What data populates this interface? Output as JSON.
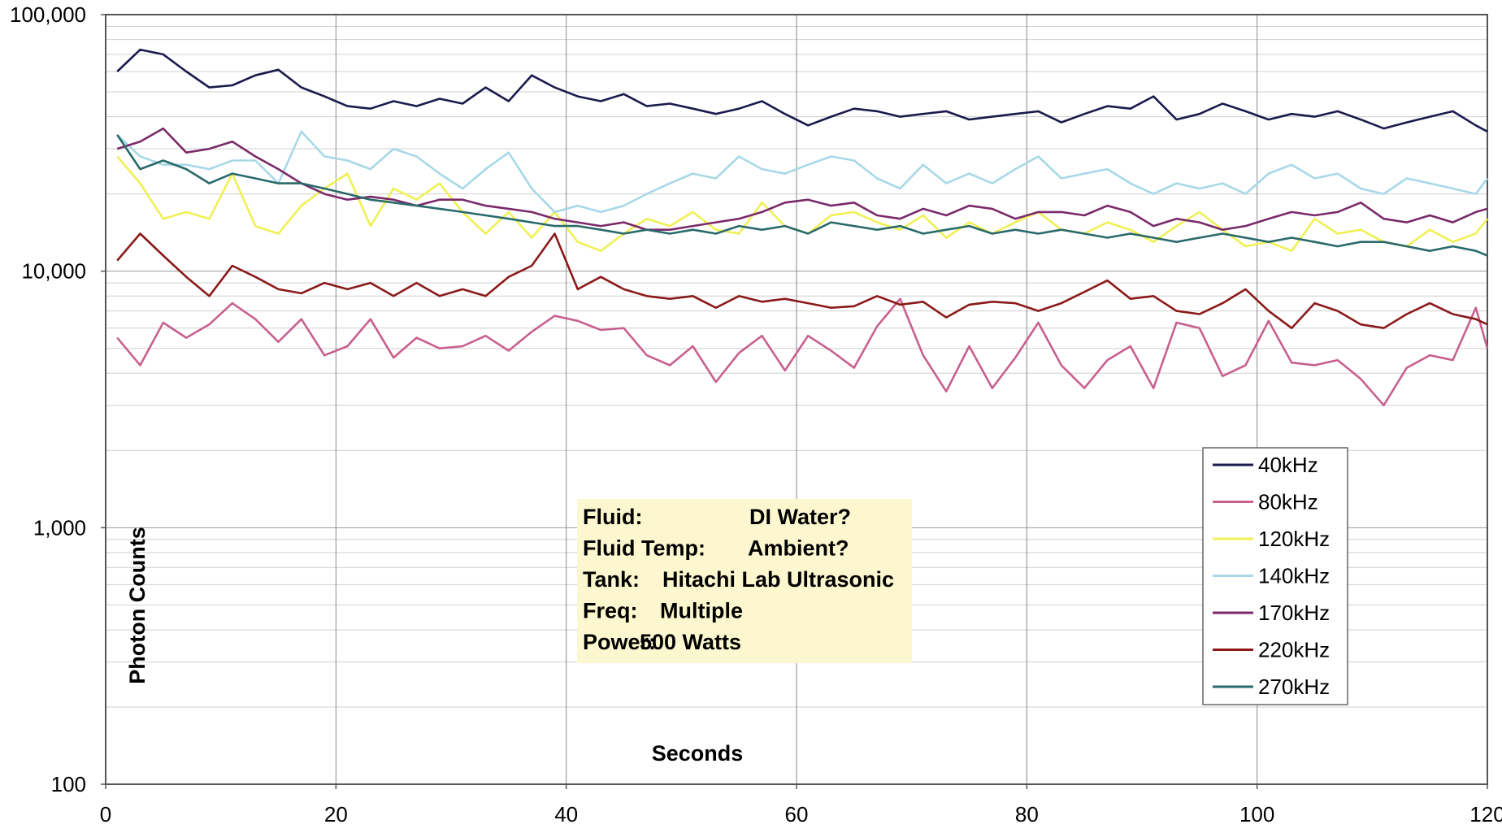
{
  "chart_data": {
    "type": "line",
    "xlabel": "Seconds",
    "ylabel": "Photon Counts",
    "xlim": [
      0,
      120
    ],
    "ylim": [
      100,
      100000
    ],
    "yscale": "log",
    "grid": "y minor, x major",
    "x_ticks": [
      "0",
      "20",
      "40",
      "60",
      "80",
      "100",
      "120"
    ],
    "y_ticks": [
      "100",
      "1,000",
      "10,000",
      "100,000"
    ],
    "legend": {
      "placement": "right-middle",
      "entries": [
        "40kHz",
        "80kHz",
        "120kHz",
        "140kHz",
        "170kHz",
        "220kHz",
        "270kHz"
      ]
    },
    "annotation": {
      "lines": [
        [
          "Fluid:",
          "DI Water?"
        ],
        [
          "Fluid Temp:",
          "Ambient?"
        ],
        [
          "Tank:",
          "Hitachi Lab Ultrasonic"
        ],
        [
          "Freq:",
          "Multiple"
        ],
        [
          "Power:",
          "500 Watts"
        ]
      ],
      "background": "#fdf7cf"
    },
    "x": [
      1,
      3,
      5,
      7,
      9,
      11,
      13,
      15,
      17,
      19,
      21,
      23,
      25,
      27,
      29,
      31,
      33,
      35,
      37,
      39,
      41,
      43,
      45,
      47,
      49,
      51,
      53,
      55,
      57,
      59,
      61,
      63,
      65,
      67,
      69,
      71,
      73,
      75,
      77,
      79,
      81,
      83,
      85,
      87,
      89,
      91,
      93,
      95,
      97,
      99,
      101,
      103,
      105,
      107,
      109,
      111,
      113,
      115,
      117,
      119,
      120
    ],
    "series": [
      {
        "name": "40kHz",
        "color": "#1a1a4d",
        "values": [
          60000,
          73000,
          70000,
          60000,
          52000,
          53000,
          58000,
          61000,
          52000,
          48000,
          44000,
          43000,
          46000,
          44000,
          47000,
          45000,
          52000,
          46000,
          58000,
          52000,
          48000,
          46000,
          49000,
          44000,
          45000,
          43000,
          41000,
          43000,
          46000,
          41000,
          37000,
          40000,
          43000,
          42000,
          40000,
          41000,
          42000,
          39000,
          40000,
          41000,
          42000,
          38000,
          41000,
          44000,
          43000,
          48000,
          39000,
          41000,
          45000,
          42000,
          39000,
          41000,
          40000,
          42000,
          39000,
          36000,
          38000,
          40000,
          42000,
          37000,
          35000
        ]
      },
      {
        "name": "80kHz",
        "color": "#c8608f",
        "values": [
          5500,
          4300,
          6300,
          5500,
          6200,
          7500,
          6500,
          5300,
          6500,
          4700,
          5100,
          6500,
          4600,
          5500,
          5000,
          5100,
          5600,
          4900,
          5800,
          6700,
          6400,
          5900,
          6000,
          4700,
          4300,
          5100,
          3700,
          4800,
          5600,
          4100,
          5600,
          4900,
          4200,
          6100,
          7800,
          4700,
          3400,
          5100,
          3500,
          4600,
          6300,
          4300,
          3500,
          4500,
          5100,
          3500,
          6300,
          6000,
          3900,
          4300,
          6400,
          4400,
          4300,
          4500,
          3800,
          3000,
          4200,
          4700,
          4500,
          7200,
          5000
        ]
      },
      {
        "name": "120kHz",
        "color": "#f0f055",
        "values": [
          28000,
          22000,
          16000,
          17000,
          16000,
          24000,
          15000,
          14000,
          18000,
          21000,
          24000,
          15000,
          21000,
          19000,
          22000,
          17000,
          14000,
          17000,
          13500,
          17000,
          13000,
          12000,
          14000,
          16000,
          15000,
          17000,
          14500,
          14000,
          18500,
          15000,
          14000,
          16500,
          17000,
          15500,
          14500,
          16500,
          13500,
          15500,
          14000,
          15500,
          17000,
          14500,
          14000,
          15500,
          14500,
          13000,
          15000,
          17000,
          14500,
          12500,
          13000,
          12000,
          16000,
          14000,
          14500,
          13000,
          12500,
          14500,
          13000,
          14000,
          16000
        ]
      },
      {
        "name": "140kHz",
        "color": "#a8d8e8",
        "values": [
          34000,
          28000,
          26000,
          26000,
          25000,
          27000,
          27000,
          22000,
          35000,
          28000,
          27000,
          25000,
          30000,
          28000,
          24000,
          21000,
          25000,
          29000,
          21000,
          17000,
          18000,
          17000,
          18000,
          20000,
          22000,
          24000,
          23000,
          28000,
          25000,
          24000,
          26000,
          28000,
          27000,
          23000,
          21000,
          26000,
          22000,
          24000,
          22000,
          25000,
          28000,
          23000,
          24000,
          25000,
          22000,
          20000,
          22000,
          21000,
          22000,
          20000,
          24000,
          26000,
          23000,
          24000,
          21000,
          20000,
          23000,
          22000,
          21000,
          20000,
          23000
        ]
      },
      {
        "name": "170kHz",
        "color": "#7a2a6a",
        "values": [
          30000,
          32000,
          36000,
          29000,
          30000,
          32000,
          28000,
          25000,
          22000,
          20000,
          19000,
          19500,
          19000,
          18000,
          19000,
          19000,
          18000,
          17500,
          17000,
          16000,
          15500,
          15000,
          15500,
          14500,
          14500,
          15000,
          15500,
          16000,
          17000,
          18500,
          19000,
          18000,
          18500,
          16500,
          16000,
          17500,
          16500,
          18000,
          17500,
          16000,
          17000,
          17000,
          16500,
          18000,
          17000,
          15000,
          16000,
          15500,
          14500,
          15000,
          16000,
          17000,
          16500,
          17000,
          18500,
          16000,
          15500,
          16500,
          15500,
          17000,
          17500
        ]
      },
      {
        "name": "220kHz",
        "color": "#8b1a1a",
        "values": [
          11000,
          14000,
          11500,
          9500,
          8000,
          10500,
          9500,
          8500,
          8200,
          9000,
          8500,
          9000,
          8000,
          9000,
          8000,
          8500,
          8000,
          9500,
          10500,
          14000,
          8500,
          9500,
          8500,
          8000,
          7800,
          8000,
          7200,
          8000,
          7600,
          7800,
          7500,
          7200,
          7300,
          8000,
          7400,
          7600,
          6600,
          7400,
          7600,
          7500,
          7000,
          7500,
          8300,
          9200,
          7800,
          8000,
          7000,
          6800,
          7500,
          8500,
          7000,
          6000,
          7500,
          7000,
          6200,
          6000,
          6800,
          7500,
          6800,
          6500,
          6200
        ]
      },
      {
        "name": "270kHz",
        "color": "#2a6a6a",
        "values": [
          34000,
          25000,
          27000,
          25000,
          22000,
          24000,
          23000,
          22000,
          22000,
          21000,
          20000,
          19000,
          18500,
          18000,
          17500,
          17000,
          16500,
          16000,
          15500,
          15000,
          15000,
          14500,
          14000,
          14500,
          14000,
          14500,
          14000,
          15000,
          14500,
          15000,
          14000,
          15500,
          15000,
          14500,
          15000,
          14000,
          14500,
          15000,
          14000,
          14500,
          14000,
          14500,
          14000,
          13500,
          14000,
          13500,
          13000,
          13500,
          14000,
          13500,
          13000,
          13500,
          13000,
          12500,
          13000,
          13000,
          12500,
          12000,
          12500,
          12000,
          11500
        ]
      }
    ]
  }
}
